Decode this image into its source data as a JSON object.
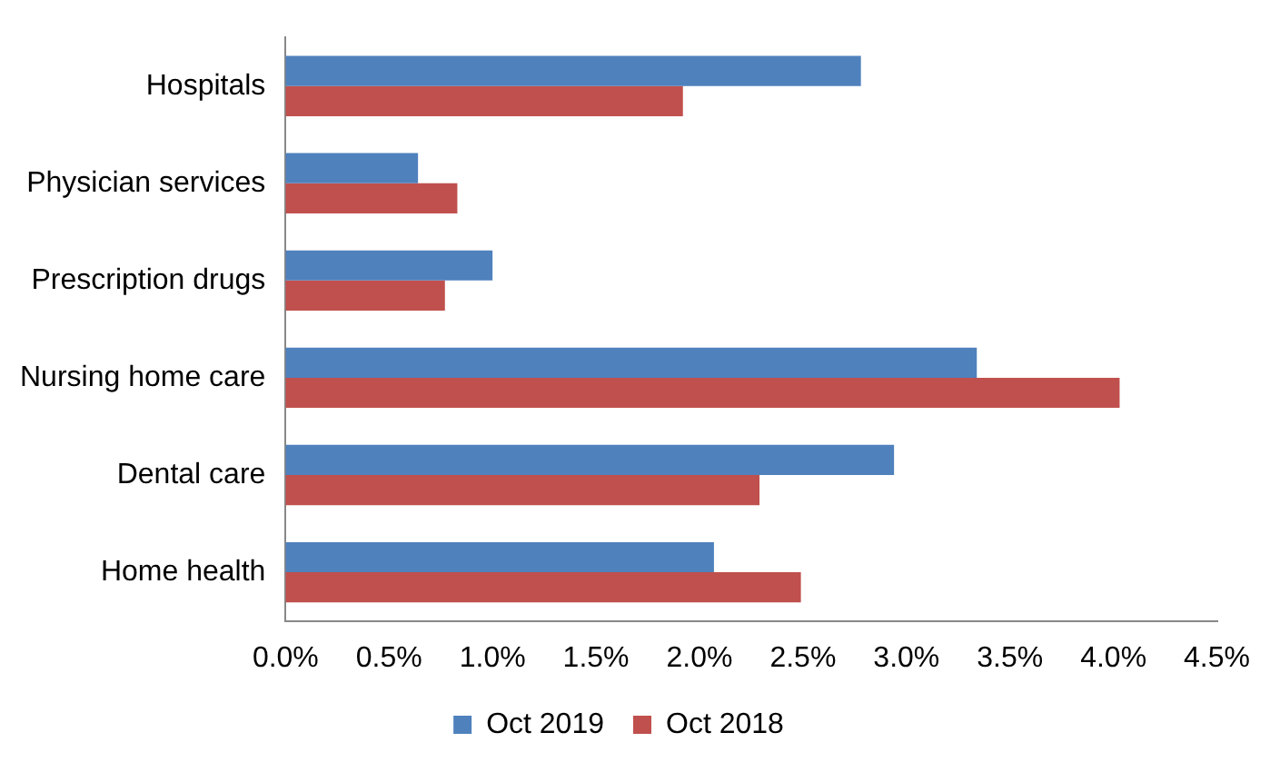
{
  "chart_data": {
    "type": "bar",
    "orientation": "horizontal",
    "categories": [
      "Hospitals",
      "Physician services",
      "Prescription drugs",
      "Nursing home care",
      "Dental care",
      "Home health"
    ],
    "series": [
      {
        "name": "Oct 2019",
        "color": "#4f81bd",
        "values": [
          2.78,
          0.64,
          1.0,
          3.34,
          2.94,
          2.07
        ]
      },
      {
        "name": "Oct 2018",
        "color": "#c0504d",
        "values": [
          1.92,
          0.83,
          0.77,
          4.03,
          2.29,
          2.49
        ]
      }
    ],
    "xlim": [
      0,
      4.5
    ],
    "xticks": [
      {
        "value": 0,
        "label": "0.0%"
      },
      {
        "value": 0.5,
        "label": "0.5%"
      },
      {
        "value": 1,
        "label": "1.0%"
      },
      {
        "value": 1.5,
        "label": "1.5%"
      },
      {
        "value": 2,
        "label": "2.0%"
      },
      {
        "value": 2.5,
        "label": "2.5%"
      },
      {
        "value": 3,
        "label": "3.0%"
      },
      {
        "value": 3.5,
        "label": "3.5%"
      },
      {
        "value": 4,
        "label": "4.0%"
      },
      {
        "value": 4.5,
        "label": "4.5%"
      }
    ],
    "grid": false,
    "legend": "bottom"
  }
}
